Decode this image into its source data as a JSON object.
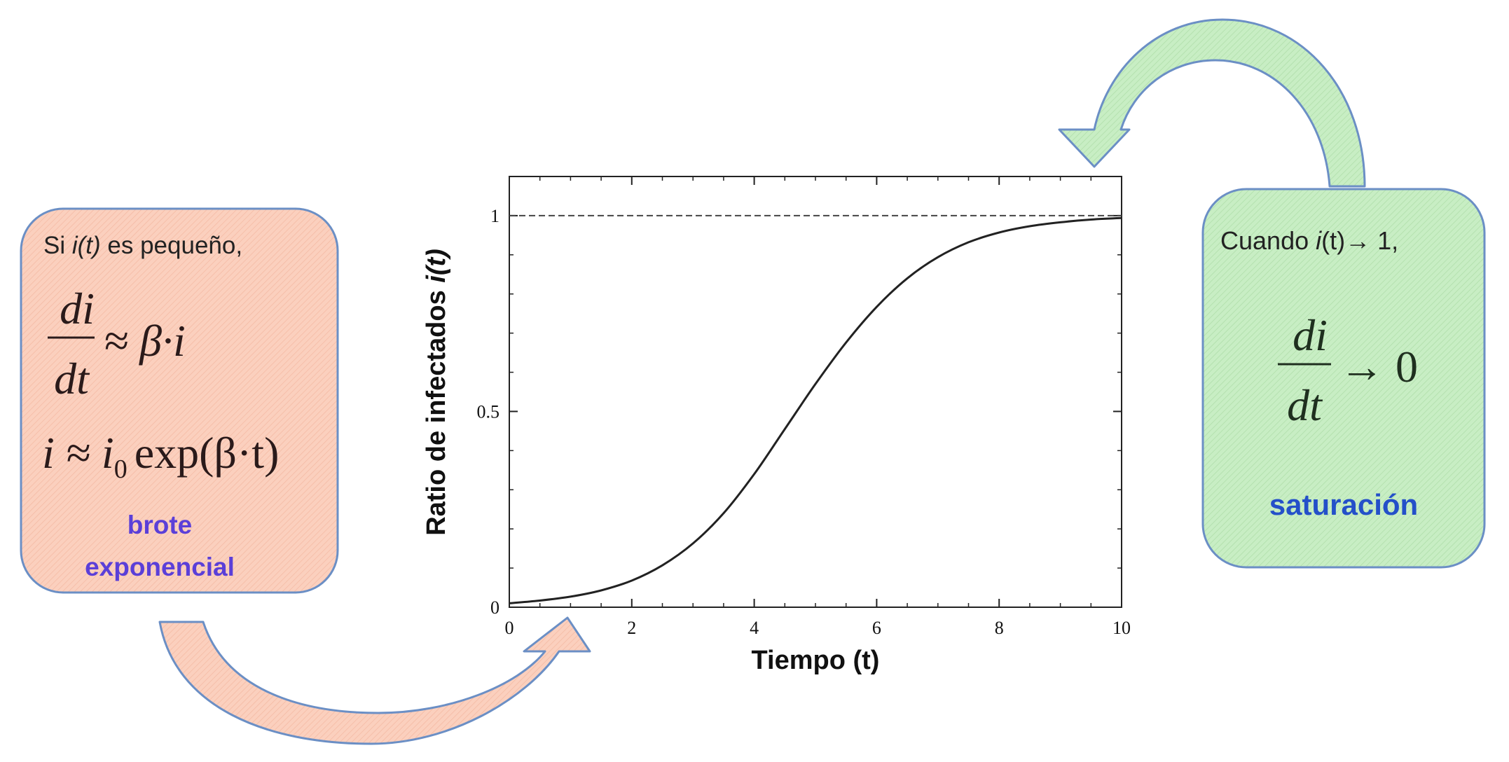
{
  "left_box": {
    "intro_prefix": "Si ",
    "intro_var": "i(t)",
    "intro_suffix": " es pequeño,",
    "eq1_numerator": "di",
    "eq1_denominator": "dt",
    "eq1_rhs": "≈ β·i",
    "eq2_lhs": "i ≈ i",
    "eq2_subscript": "0",
    "eq2_rhs": "exp(β·t)",
    "label_line1": "brote",
    "label_line2": "exponencial",
    "fill_color": "#fbd0be",
    "label_color": "#5b3fd8"
  },
  "right_box": {
    "intro_prefix": "Cuando ",
    "intro_var": "i",
    "intro_paren": "(t)",
    "intro_arrow": "→",
    "intro_suffix": " 1,",
    "eq_numerator": "di",
    "eq_denominator": "dt",
    "eq_rhs": "→ 0",
    "label": "saturación",
    "fill_color": "#c8eec4",
    "label_color": "#2450c9"
  },
  "arrows": {
    "bottom_fill": "#fbd0be",
    "top_fill": "#c8eec4",
    "stroke": "#6b8fc5"
  },
  "chart_data": {
    "type": "line",
    "title": "",
    "xlabel": "Tiempo (t)",
    "ylabel_prefix": "Ratio de infectados ",
    "ylabel_var": "i(t)",
    "xlim": [
      0,
      10
    ],
    "ylim": [
      0,
      1.1
    ],
    "xticks": [
      0,
      2,
      4,
      6,
      8,
      10
    ],
    "xtick_labels": [
      "0",
      "2",
      "4",
      "6",
      "8",
      "10"
    ],
    "yticks": [
      0,
      0.5,
      1
    ],
    "ytick_labels": [
      "0",
      "0.5",
      "1"
    ],
    "grid": false,
    "series": [
      {
        "x": [
          0,
          0.5,
          1,
          1.5,
          2,
          2.5,
          3,
          3.5,
          4,
          4.5,
          5,
          5.5,
          6,
          6.5,
          7,
          7.5,
          8,
          8.5,
          9,
          9.5,
          10
        ],
        "values": [
          0.01,
          0.017,
          0.027,
          0.043,
          0.068,
          0.107,
          0.163,
          0.24,
          0.34,
          0.455,
          0.57,
          0.676,
          0.767,
          0.84,
          0.894,
          0.932,
          0.957,
          0.973,
          0.983,
          0.99,
          0.994
        ],
        "color": "#222222",
        "style": "solid"
      },
      {
        "x": [
          0,
          10
        ],
        "values": [
          1,
          1
        ],
        "color": "#444444",
        "style": "dashed"
      }
    ]
  }
}
